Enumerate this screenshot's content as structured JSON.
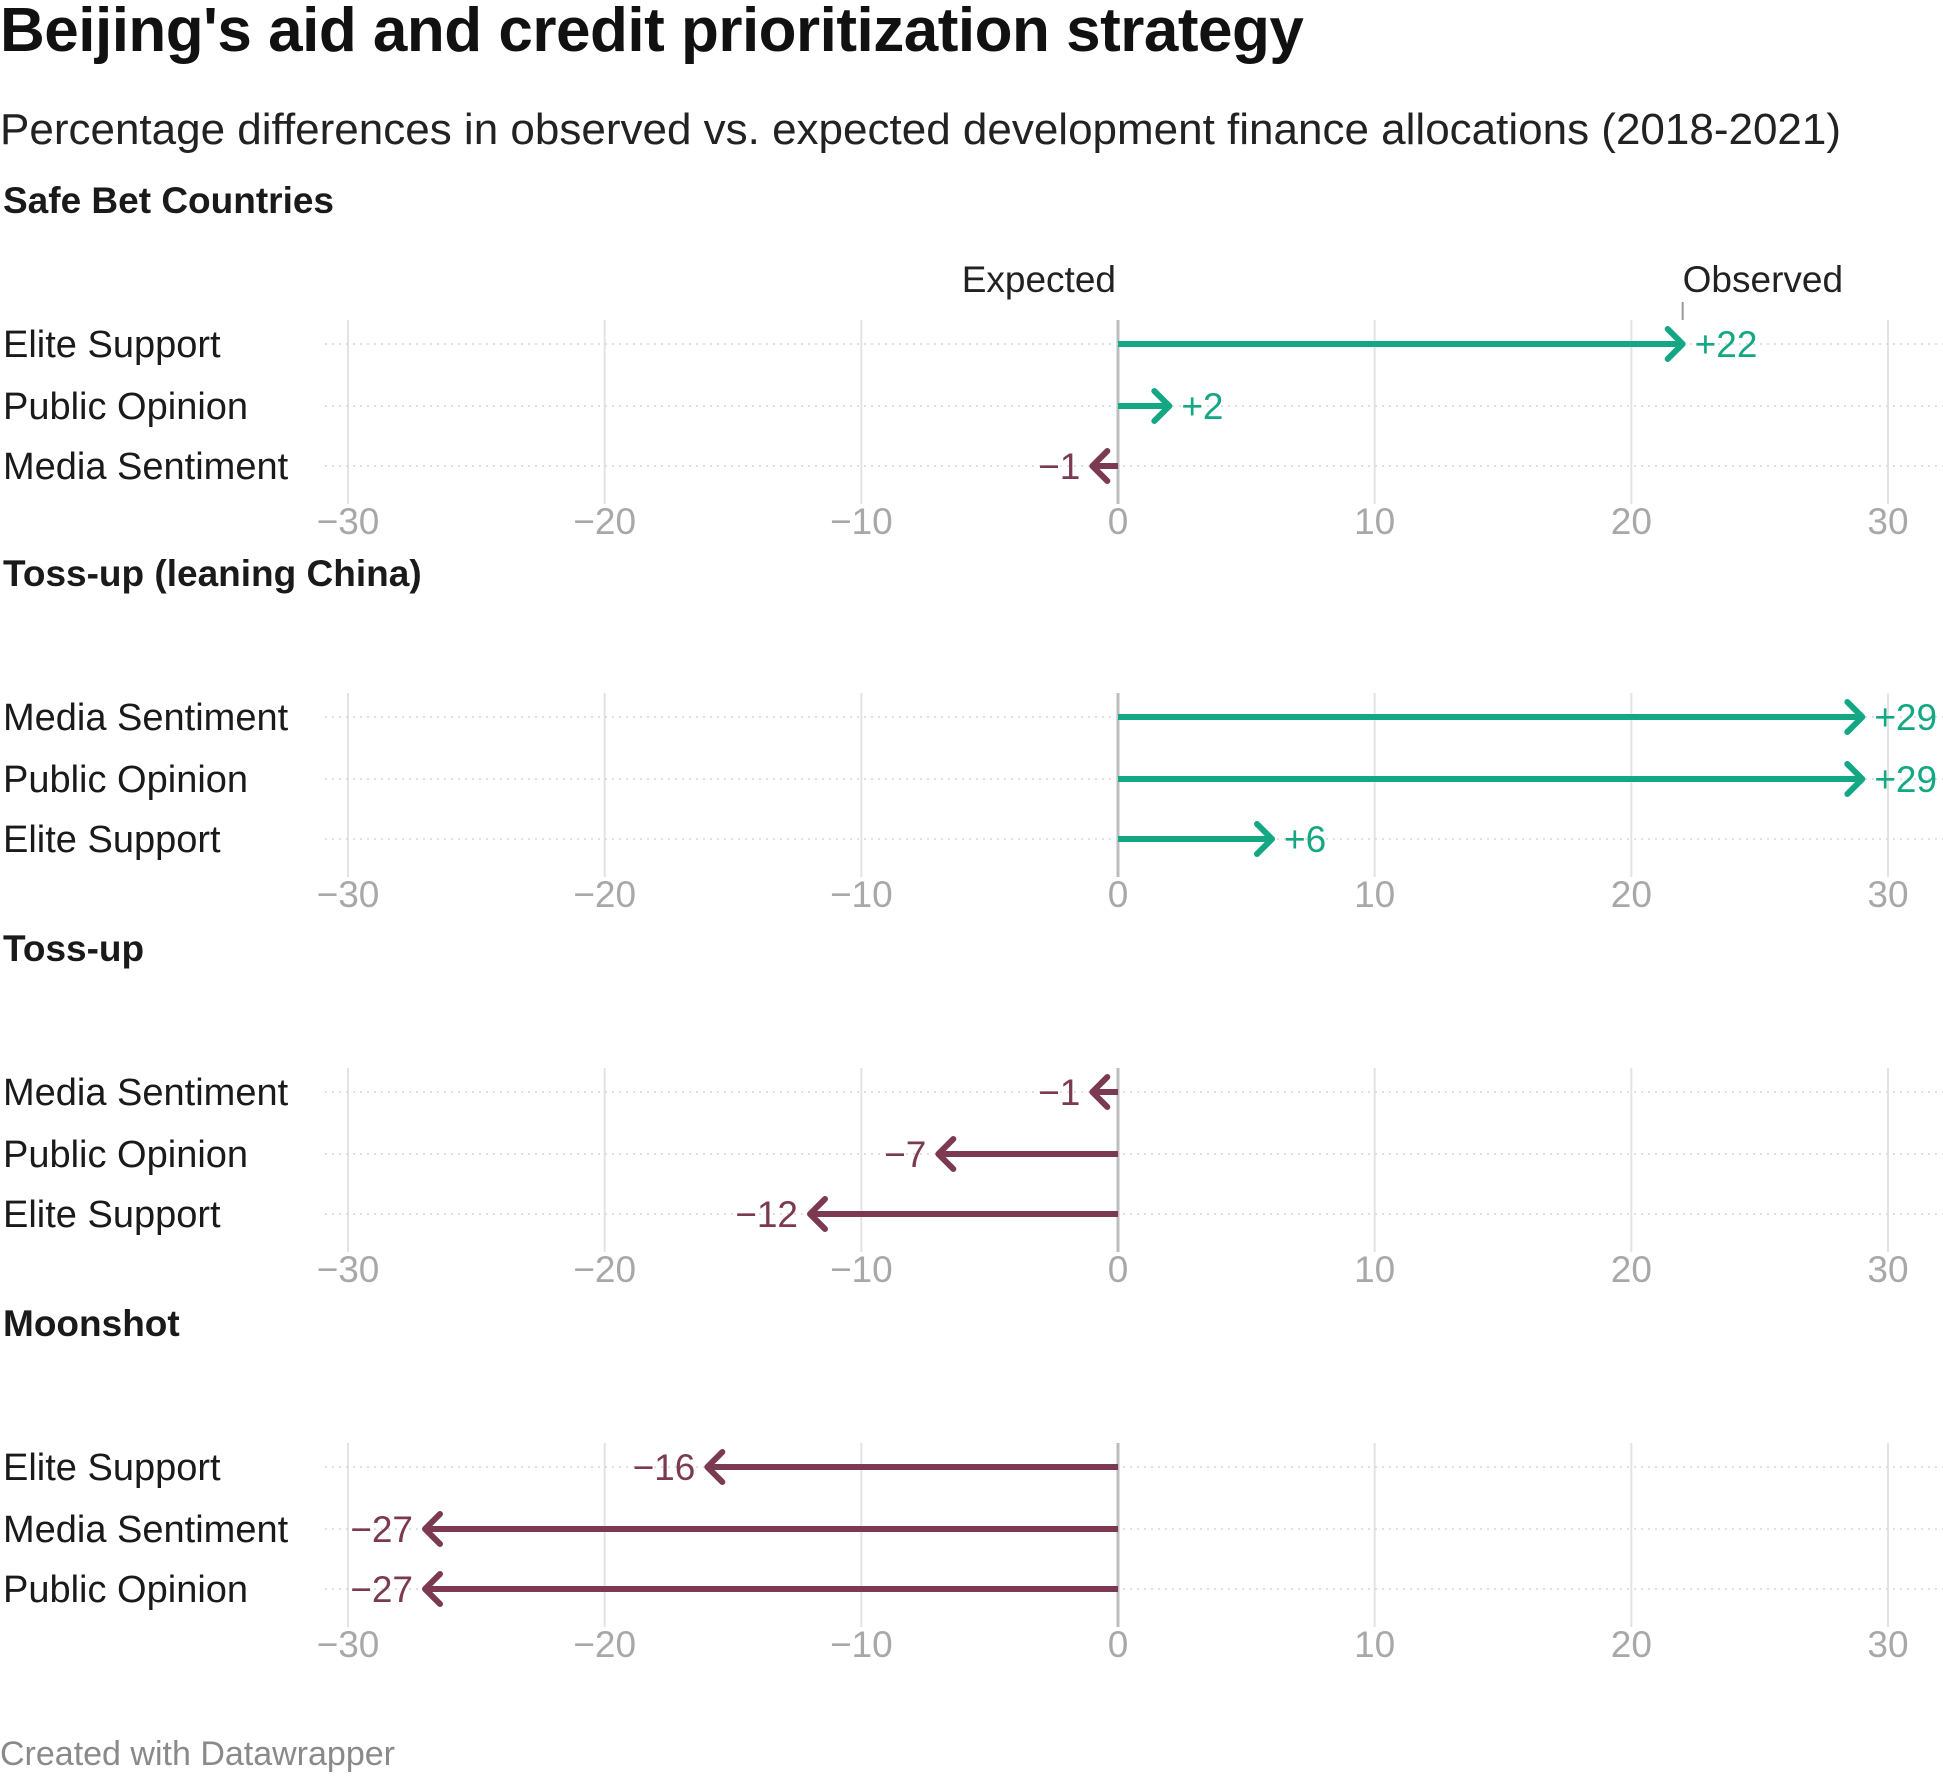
{
  "title": "Beijing's aid and credit prioritization strategy",
  "subtitle": "Percentage differences in observed vs. expected development finance allocations (2018-2021)",
  "footer": "Created with Datawrapper",
  "colors": {
    "positive": "#13a883",
    "negative": "#7b3a52",
    "grid": "#e3e3e3",
    "zero": "#bdbdbd",
    "tick": "#a8a8a8"
  },
  "chart_data": {
    "type": "arrow",
    "xlim": [
      -30,
      30
    ],
    "ticks": [
      -30,
      -20,
      -10,
      0,
      10,
      20,
      30
    ],
    "tick_labels": [
      "−30",
      "−20",
      "−10",
      "0",
      "10",
      "20",
      "30"
    ],
    "annotations": {
      "expected": "Expected",
      "observed": "Observed"
    },
    "groups": [
      {
        "name": "Safe Bet Countries",
        "rows": [
          {
            "label": "Elite Support",
            "value": 22,
            "value_label": "+22"
          },
          {
            "label": "Public Opinion",
            "value": 2,
            "value_label": "+2"
          },
          {
            "label": "Media Sentiment",
            "value": -1,
            "value_label": "−1"
          }
        ]
      },
      {
        "name": "Toss-up (leaning China)",
        "rows": [
          {
            "label": "Media Sentiment",
            "value": 29,
            "value_label": "+29"
          },
          {
            "label": "Public Opinion",
            "value": 29,
            "value_label": "+29"
          },
          {
            "label": "Elite Support",
            "value": 6,
            "value_label": "+6"
          }
        ]
      },
      {
        "name": "Toss-up",
        "rows": [
          {
            "label": "Media Sentiment",
            "value": -1,
            "value_label": "−1"
          },
          {
            "label": "Public Opinion",
            "value": -7,
            "value_label": "−7"
          },
          {
            "label": "Elite Support",
            "value": -12,
            "value_label": "−12"
          }
        ]
      },
      {
        "name": "Moonshot",
        "rows": [
          {
            "label": "Elite Support",
            "value": -16,
            "value_label": "−16"
          },
          {
            "label": "Media Sentiment",
            "value": -27,
            "value_label": "−27"
          },
          {
            "label": "Public Opinion",
            "value": -27,
            "value_label": "−27"
          }
        ]
      }
    ]
  }
}
